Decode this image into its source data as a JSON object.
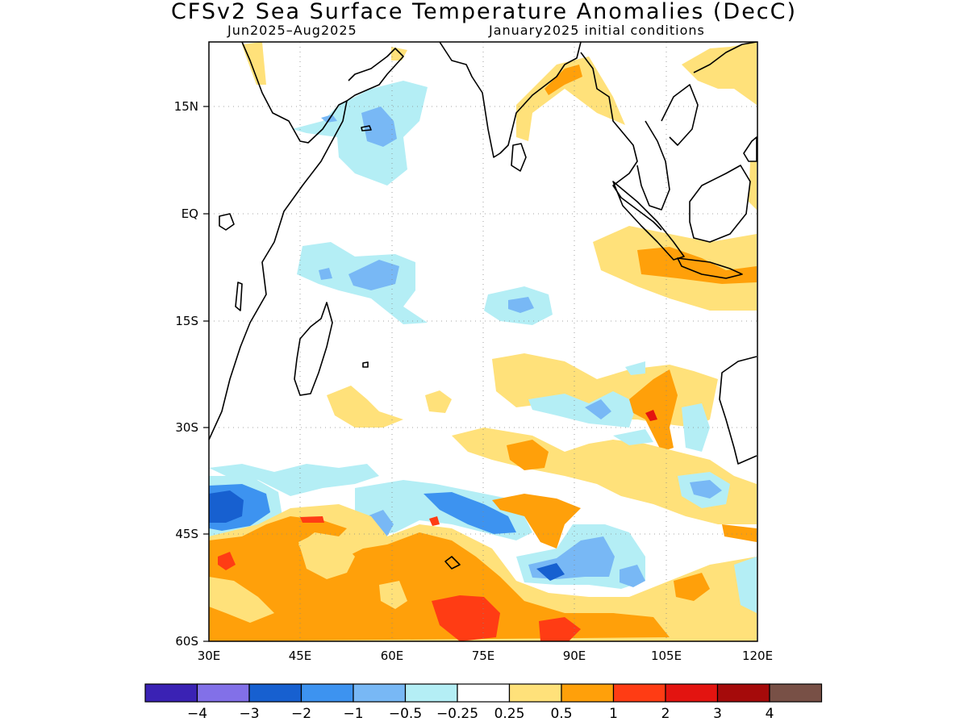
{
  "title": "CFSv2 Sea Surface Temperature Anomalies (DecC)",
  "subtitle_left": "Jun2025–Aug2025",
  "subtitle_right": "January2025 initial conditions",
  "map": {
    "lon_range": [
      30,
      120
    ],
    "lat_range": [
      -60,
      23
    ],
    "lat_ticks": [
      {
        "value": 15,
        "label": "15N"
      },
      {
        "value": 0,
        "label": "EQ"
      },
      {
        "value": -15,
        "label": "15S"
      },
      {
        "value": -30,
        "label": "30S"
      },
      {
        "value": -45,
        "label": "45S"
      },
      {
        "value": -60,
        "label": "60S"
      }
    ],
    "lon_ticks": [
      {
        "value": 30,
        "label": "30E"
      },
      {
        "value": 45,
        "label": "45E"
      },
      {
        "value": 60,
        "label": "60E"
      },
      {
        "value": 75,
        "label": "75E"
      },
      {
        "value": 90,
        "label": "90E"
      },
      {
        "value": 105,
        "label": "105E"
      },
      {
        "value": 120,
        "label": "120E"
      }
    ],
    "grid": true
  },
  "colorbar": {
    "colors": [
      "#3a22b4",
      "#8270e8",
      "#1760d0",
      "#3d93f0",
      "#78b8f5",
      "#b4eef5",
      "#ffffff",
      "#ffe17a",
      "#ffa00a",
      "#ff3c14",
      "#e31410",
      "#a50a0a",
      "#785046"
    ],
    "labels": [
      "−4",
      "−3",
      "−2",
      "−1",
      "−0.5",
      "−0.25",
      "0.25",
      "0.5",
      "1",
      "2",
      "3",
      "4"
    ]
  }
}
